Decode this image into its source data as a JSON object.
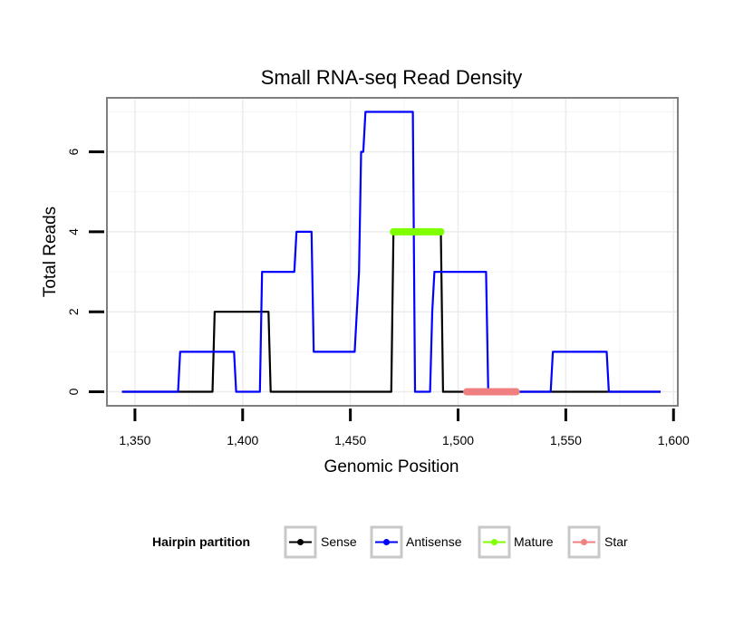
{
  "chart_data": {
    "type": "line",
    "title": "Small RNA-seq Read Density",
    "xlabel": "Genomic Position",
    "ylabel": "Total Reads",
    "xlim": [
      1337,
      1602
    ],
    "ylim": [
      -0.35,
      7.35
    ],
    "x_ticks": [
      1350,
      1400,
      1450,
      1500,
      1550,
      1600
    ],
    "x_tick_labels": [
      "1,350",
      "1,400",
      "1,450",
      "1,500",
      "1,550",
      "1,600"
    ],
    "y_ticks": [
      0,
      2,
      4,
      6
    ],
    "y_tick_labels": [
      "0",
      "2",
      "4",
      "6"
    ],
    "grid": true,
    "legend": {
      "title": "Hairpin partition",
      "position": "bottom",
      "entries": [
        "Sense",
        "Antisense",
        "Mature",
        "Star"
      ]
    },
    "series": [
      {
        "name": "Sense",
        "color": "#000000",
        "style": "line",
        "x": [
          1344,
          1386,
          1387,
          1398,
          1399,
          1412,
          1413,
          1469,
          1470,
          1492,
          1493,
          1594
        ],
        "y": [
          0,
          0,
          2,
          2,
          2,
          2,
          0,
          0,
          4,
          4,
          0,
          0
        ]
      },
      {
        "name": "Antisense",
        "color": "#0000ff",
        "style": "line",
        "x": [
          1344,
          1370,
          1371,
          1396,
          1397,
          1408,
          1409,
          1424,
          1425,
          1432,
          1433,
          1452,
          1454,
          1455,
          1456,
          1457,
          1479,
          1480,
          1487,
          1488,
          1489,
          1513,
          1514,
          1543,
          1544,
          1569,
          1570,
          1594
        ],
        "y": [
          0,
          0,
          1,
          1,
          0,
          0,
          3,
          3,
          4,
          4,
          1,
          1,
          3,
          6,
          6,
          7,
          7,
          0,
          0,
          2,
          3,
          3,
          0,
          0,
          1,
          1,
          0,
          0
        ]
      },
      {
        "name": "Mature",
        "color": "#7fff00",
        "style": "segment",
        "x": [
          1470,
          1492
        ],
        "y": [
          4,
          4
        ]
      },
      {
        "name": "Star",
        "color": "#f08080",
        "style": "segment",
        "x": [
          1504,
          1527
        ],
        "y": [
          0,
          0
        ]
      }
    ]
  }
}
